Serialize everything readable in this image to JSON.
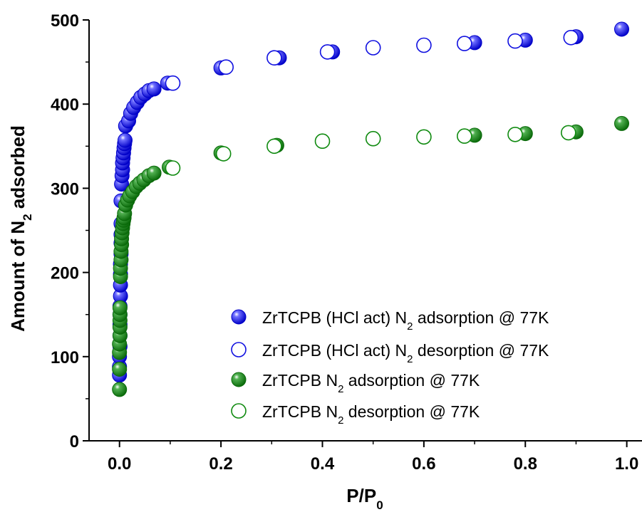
{
  "chart_data": {
    "type": "scatter",
    "xlabel": {
      "main": "P/P",
      "sub": "0"
    },
    "ylabel": {
      "pre": "Amount of N",
      "sub": "2",
      "post": " adsorbed"
    },
    "xlim": [
      -0.06,
      1.03
    ],
    "ylim": [
      0,
      500
    ],
    "x_ticks": [
      "0.0",
      "0.2",
      "0.4",
      "0.6",
      "0.8",
      "1.0"
    ],
    "y_ticks": [
      "0",
      "100",
      "200",
      "300",
      "400",
      "500"
    ],
    "grid": false,
    "legend_position": "bottom-right",
    "series": [
      {
        "name": "ZrTCPB (HCl act) N2 adsorption @ 77K",
        "legend": {
          "pre": "ZrTCPB (HCl act) N",
          "sub": "2",
          "post": " adsorption @ 77K"
        },
        "color": "#1010e0",
        "filled": true,
        "points": [
          [
            0.0,
            78
          ],
          [
            0.0,
            88
          ],
          [
            0.0,
            100
          ],
          [
            0.001,
            112
          ],
          [
            0.001,
            125
          ],
          [
            0.001,
            138
          ],
          [
            0.001,
            150
          ],
          [
            0.001,
            160
          ],
          [
            0.002,
            172
          ],
          [
            0.002,
            185
          ],
          [
            0.002,
            198
          ],
          [
            0.002,
            210
          ],
          [
            0.003,
            222
          ],
          [
            0.003,
            235
          ],
          [
            0.003,
            245
          ],
          [
            0.003,
            258
          ],
          [
            0.003,
            285
          ],
          [
            0.004,
            305
          ],
          [
            0.005,
            315
          ],
          [
            0.006,
            322
          ],
          [
            0.006,
            330
          ],
          [
            0.007,
            336
          ],
          [
            0.008,
            342
          ],
          [
            0.009,
            348
          ],
          [
            0.01,
            353
          ],
          [
            0.011,
            357
          ],
          [
            0.012,
            374
          ],
          [
            0.018,
            380
          ],
          [
            0.022,
            389
          ],
          [
            0.028,
            396
          ],
          [
            0.035,
            402
          ],
          [
            0.042,
            408
          ],
          [
            0.05,
            412
          ],
          [
            0.058,
            416
          ],
          [
            0.068,
            418
          ],
          [
            0.095,
            425
          ],
          [
            0.2,
            443
          ],
          [
            0.315,
            455
          ],
          [
            0.42,
            462
          ],
          [
            0.5,
            467
          ],
          [
            0.7,
            473
          ],
          [
            0.8,
            476
          ],
          [
            0.9,
            480
          ],
          [
            0.99,
            489
          ]
        ]
      },
      {
        "name": "ZrTCPB (HCl act) N2 desorption @ 77K",
        "legend": {
          "pre": "ZrTCPB (HCl act) N",
          "sub": "2",
          "post": " desorption @ 77K"
        },
        "color": "#1010e0",
        "filled": false,
        "points": [
          [
            0.105,
            425
          ],
          [
            0.21,
            444
          ],
          [
            0.305,
            455
          ],
          [
            0.41,
            462
          ],
          [
            0.5,
            467
          ],
          [
            0.6,
            470
          ],
          [
            0.68,
            472
          ],
          [
            0.78,
            475
          ],
          [
            0.89,
            479
          ]
        ]
      },
      {
        "name": "ZrTCPB N2 adsorption @ 77K",
        "legend": {
          "pre": "ZrTCPB N",
          "sub": "2",
          "post": " adsorption @ 77K"
        },
        "color": "#0f8a0f",
        "filled": true,
        "points": [
          [
            0.0,
            61
          ],
          [
            0.0,
            85
          ],
          [
            0.0,
            105
          ],
          [
            0.0,
            115
          ],
          [
            0.001,
            125
          ],
          [
            0.001,
            135
          ],
          [
            0.001,
            143
          ],
          [
            0.001,
            150
          ],
          [
            0.001,
            158
          ],
          [
            0.002,
            195
          ],
          [
            0.002,
            205
          ],
          [
            0.003,
            215
          ],
          [
            0.003,
            225
          ],
          [
            0.004,
            233
          ],
          [
            0.004,
            240
          ],
          [
            0.005,
            247
          ],
          [
            0.006,
            253
          ],
          [
            0.007,
            258
          ],
          [
            0.008,
            262
          ],
          [
            0.009,
            265
          ],
          [
            0.01,
            270
          ],
          [
            0.012,
            280
          ],
          [
            0.016,
            286
          ],
          [
            0.02,
            291
          ],
          [
            0.026,
            296
          ],
          [
            0.033,
            302
          ],
          [
            0.04,
            306
          ],
          [
            0.048,
            310
          ],
          [
            0.058,
            315
          ],
          [
            0.068,
            318
          ],
          [
            0.098,
            325
          ],
          [
            0.2,
            342
          ],
          [
            0.31,
            351
          ],
          [
            0.7,
            363
          ],
          [
            0.8,
            365
          ],
          [
            0.9,
            367
          ],
          [
            0.99,
            377
          ]
        ]
      },
      {
        "name": "ZrTCPB N2 desorption @ 77K",
        "legend": {
          "pre": "ZrTCPB N",
          "sub": "2",
          "post": " desorption @ 77K"
        },
        "color": "#0f8a0f",
        "filled": false,
        "points": [
          [
            0.105,
            324
          ],
          [
            0.205,
            341
          ],
          [
            0.305,
            350
          ],
          [
            0.4,
            356
          ],
          [
            0.5,
            359
          ],
          [
            0.6,
            361
          ],
          [
            0.68,
            362
          ],
          [
            0.78,
            364
          ],
          [
            0.885,
            366
          ]
        ]
      }
    ]
  }
}
